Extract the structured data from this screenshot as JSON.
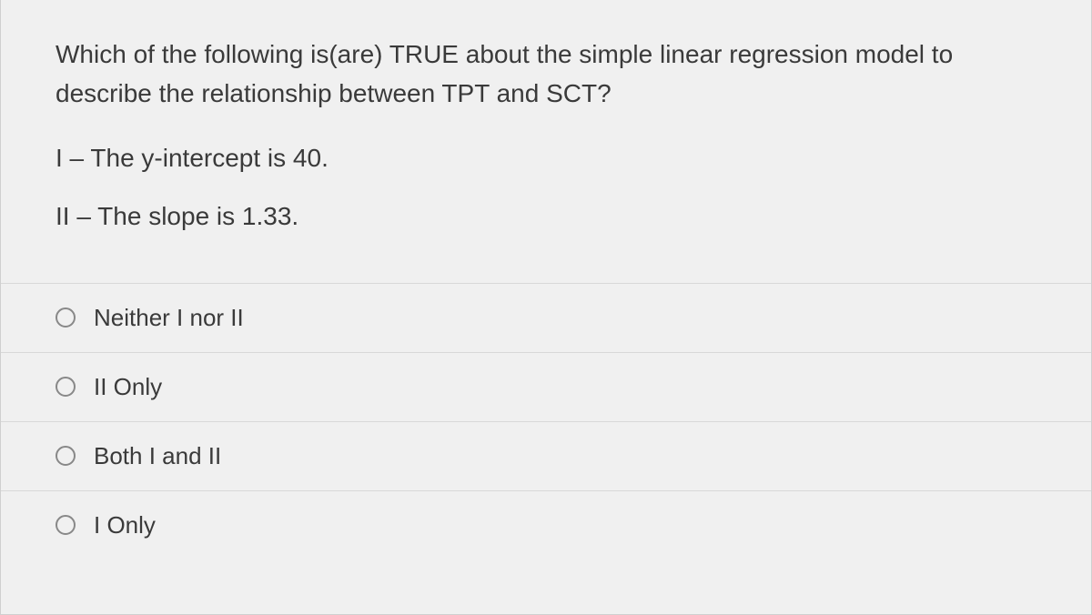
{
  "question": {
    "prompt": "Which of the following is(are) TRUE about the simple linear regression model to describe the relationship between TPT and SCT?",
    "statements": [
      "I – The y-intercept is 40.",
      "II – The slope is 1.33."
    ]
  },
  "options": [
    {
      "label": "Neither I nor II"
    },
    {
      "label": "II Only"
    },
    {
      "label": "Both I and II"
    },
    {
      "label": "I Only"
    }
  ],
  "colors": {
    "background": "#f0f0f0",
    "text": "#3a3a3a",
    "border": "#d8d8d8",
    "radio_border": "#888888"
  },
  "typography": {
    "question_fontsize": 28,
    "option_fontsize": 26
  }
}
